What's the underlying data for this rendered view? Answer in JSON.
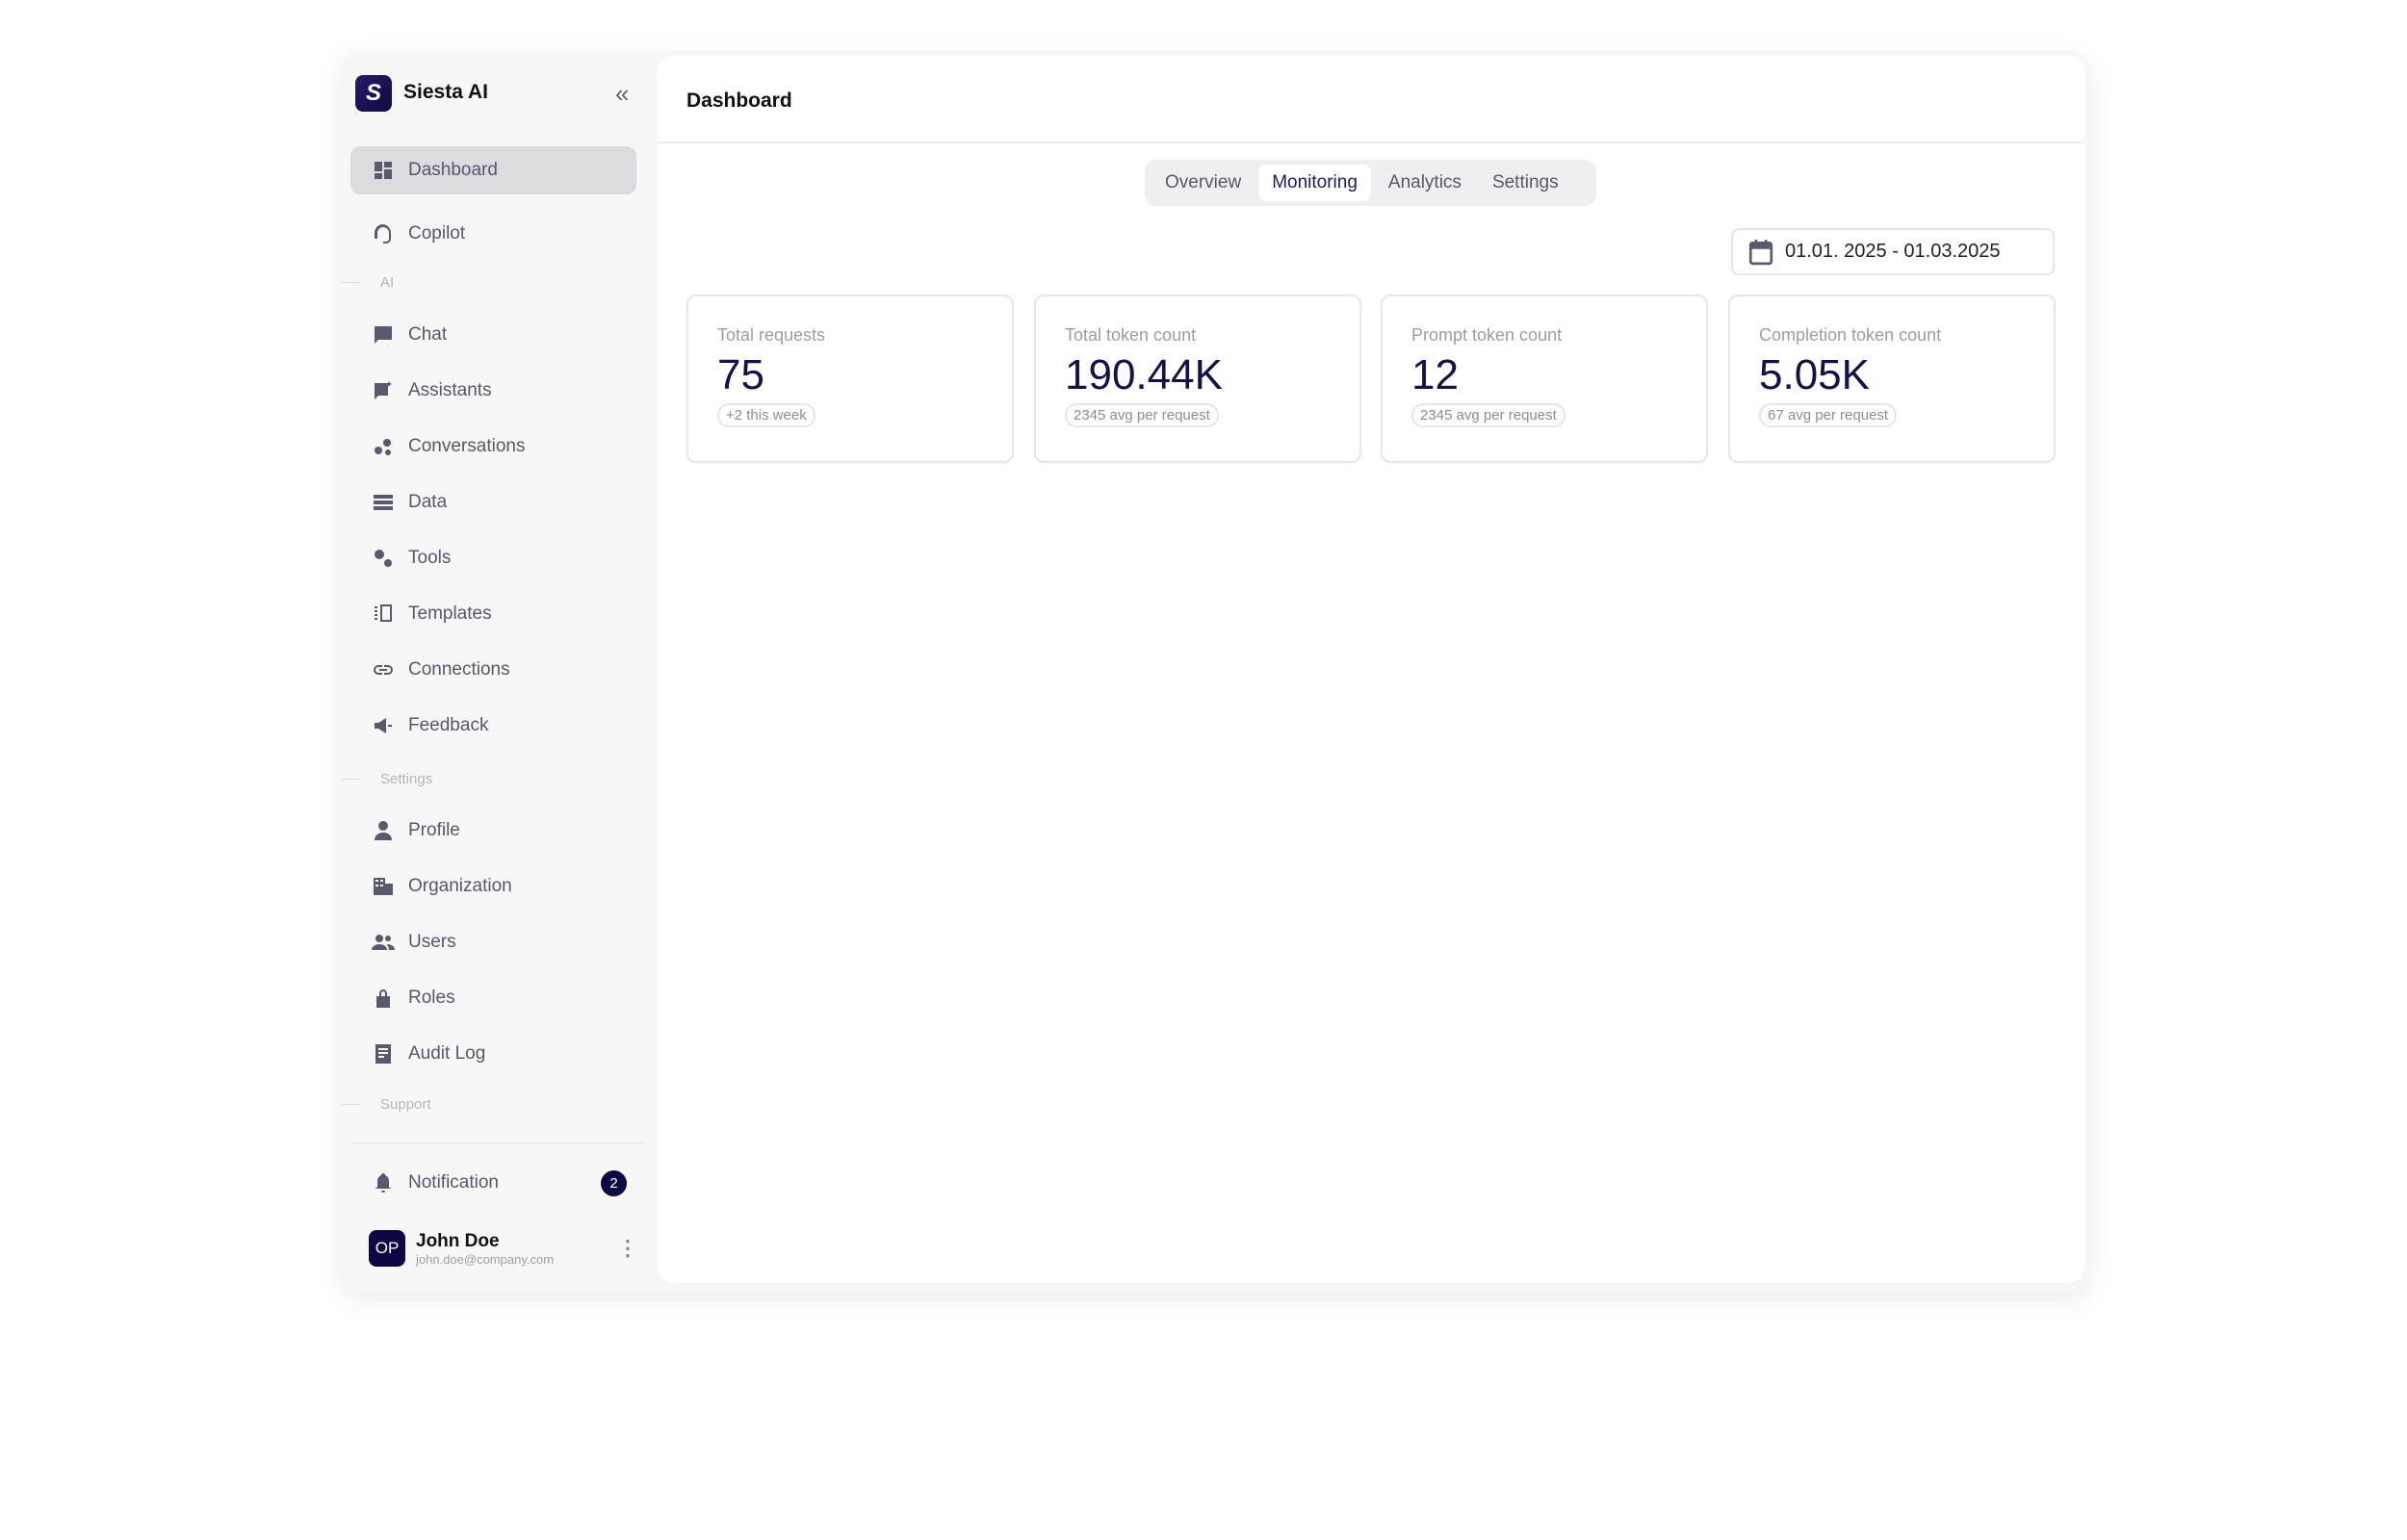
{
  "app": {
    "name": "Siesta AI",
    "logo_letter": "S"
  },
  "sidebar": {
    "items": [
      {
        "label": "Dashboard",
        "icon": "dashboard-icon"
      },
      {
        "label": "Copilot",
        "icon": "headset-icon"
      },
      {
        "label": "Chat",
        "icon": "chat-icon"
      },
      {
        "label": "Assistants",
        "icon": "assistant-icon"
      },
      {
        "label": "Conversations",
        "icon": "conversations-icon"
      },
      {
        "label": "Data",
        "icon": "data-icon"
      },
      {
        "label": "Tools",
        "icon": "gears-icon"
      },
      {
        "label": "Templates",
        "icon": "templates-icon"
      },
      {
        "label": "Connections",
        "icon": "link-icon"
      },
      {
        "label": "Feedback",
        "icon": "megaphone-icon"
      },
      {
        "label": "Profile",
        "icon": "person-icon"
      },
      {
        "label": "Organization",
        "icon": "building-icon"
      },
      {
        "label": "Users",
        "icon": "users-icon"
      },
      {
        "label": "Roles",
        "icon": "lock-icon"
      },
      {
        "label": "Audit Log",
        "icon": "receipt-icon"
      }
    ],
    "sections": {
      "ai": "AI",
      "settings": "Settings",
      "support": "Support"
    },
    "notification": {
      "label": "Notification",
      "count": "2"
    },
    "user": {
      "initials": "OP",
      "name": "John Doe",
      "email": "john.doe@company.com"
    }
  },
  "header": {
    "title": "Dashboard"
  },
  "tabs": [
    {
      "label": "Overview"
    },
    {
      "label": "Monitoring",
      "active": true
    },
    {
      "label": "Analytics"
    },
    {
      "label": "Settings"
    }
  ],
  "date_range": "01.01. 2025 - 01.03.2025",
  "cards": [
    {
      "label": "Total requests",
      "value": "75",
      "note": "+2 this week"
    },
    {
      "label": "Total token count",
      "value": "190.44K",
      "note": "2345 avg per request"
    },
    {
      "label": "Prompt token count",
      "value": "12",
      "note": "2345 avg per request"
    },
    {
      "label": "Completion token count",
      "value": "5.05K",
      "note": "67 avg per request"
    }
  ],
  "colors": {
    "accent": "#0b0944",
    "active_item": "#dcdce0",
    "sidebar_bg": "#f7f7f8"
  }
}
